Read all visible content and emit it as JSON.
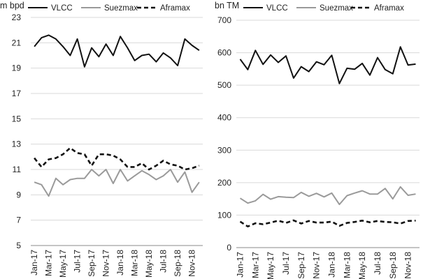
{
  "colors": {
    "vlcc": "#111111",
    "suezmax": "#9a9a9a",
    "aframax": "#111111",
    "grid": "#d9d9d9",
    "axis": "#888888"
  },
  "chart_data": [
    {
      "type": "line",
      "unit_label": "m bpd",
      "ylim": [
        5,
        23
      ],
      "yticks": [
        5,
        7,
        9,
        11,
        13,
        15,
        17,
        19,
        21,
        23
      ],
      "tick_labels": [
        "Jan-17",
        "Mar-17",
        "May-17",
        "Jul-17",
        "Sep-17",
        "Nov-17",
        "Jan-18",
        "Mar-18",
        "May-18",
        "Jul-18",
        "Sep-18",
        "Nov-18"
      ],
      "legend": [
        "VLCC",
        "Suezmax",
        "Aframax"
      ],
      "series": [
        {
          "name": "VLCC",
          "values": [
            20.7,
            21.4,
            21.6,
            21.3,
            20.7,
            20.0,
            21.3,
            19.1,
            20.6,
            19.9,
            20.9,
            20.0,
            21.5,
            20.6,
            19.6,
            20.0,
            20.1,
            19.5,
            20.2,
            19.8,
            19.2,
            21.3,
            20.8,
            20.4
          ]
        },
        {
          "name": "Suezmax",
          "values": [
            10.0,
            9.8,
            8.9,
            10.3,
            9.8,
            10.2,
            10.3,
            10.3,
            11.0,
            10.5,
            11.0,
            9.9,
            11.0,
            10.1,
            10.5,
            10.9,
            10.6,
            10.2,
            10.5,
            11.0,
            10.0,
            10.8,
            9.2,
            10.0
          ]
        },
        {
          "name": "Aframax",
          "values": [
            11.9,
            11.2,
            11.8,
            11.9,
            12.2,
            12.7,
            12.3,
            12.2,
            11.3,
            12.2,
            12.2,
            12.1,
            11.8,
            11.2,
            11.2,
            11.5,
            11.0,
            11.3,
            11.7,
            11.4,
            11.3,
            11.0,
            11.1,
            11.3
          ]
        }
      ]
    },
    {
      "type": "line",
      "unit_label": "bn TM",
      "ylim": [
        0,
        700
      ],
      "yticks": [
        0,
        100,
        200,
        300,
        400,
        500,
        600,
        700
      ],
      "tick_labels": [
        "Jan-17",
        "Mar-17",
        "May-17",
        "Jul-17",
        "Sep-17",
        "Nov-17",
        "Jan-18",
        "Mar-18",
        "May-18",
        "Jul-18",
        "Sep-18",
        "Nov-18"
      ],
      "legend": [
        "VLCC",
        "Suezmax",
        "Aframax"
      ],
      "series": [
        {
          "name": "VLCC",
          "values": [
            580,
            548,
            607,
            564,
            593,
            570,
            590,
            522,
            557,
            542,
            572,
            563,
            592,
            505,
            552,
            549,
            567,
            531,
            585,
            548,
            535,
            618,
            562,
            565
          ]
        },
        {
          "name": "Suezmax",
          "values": [
            152,
            137,
            144,
            164,
            149,
            157,
            155,
            154,
            170,
            158,
            167,
            156,
            168,
            133,
            160,
            168,
            175,
            165,
            165,
            182,
            150,
            187,
            161,
            165
          ]
        },
        {
          "name": "Aframax",
          "values": [
            80,
            65,
            75,
            72,
            77,
            83,
            76,
            84,
            74,
            82,
            77,
            77,
            80,
            67,
            76,
            79,
            83,
            78,
            82,
            79,
            78,
            74,
            82,
            83
          ]
        }
      ]
    }
  ]
}
